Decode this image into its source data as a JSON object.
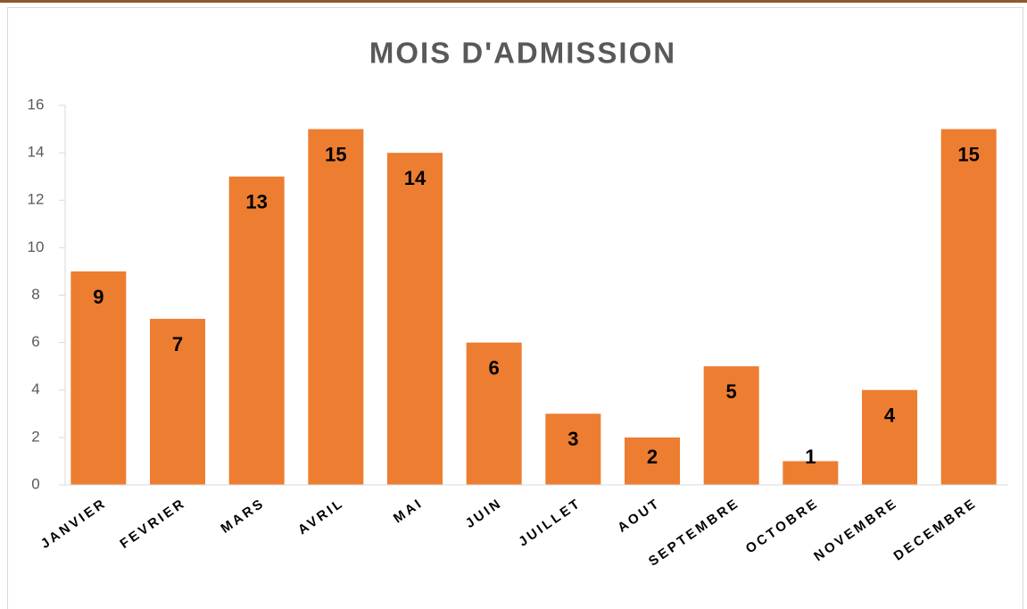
{
  "chart_data": {
    "type": "bar",
    "title": "MOIS D'ADMISSION",
    "categories": [
      "JANVIER",
      "FEVRIER",
      "MARS",
      "AVRIL",
      "MAI",
      "JUIN",
      "JUILLET",
      "AOUT",
      "SEPTEMBRE",
      "OCTOBRE",
      "NOVEMBRE",
      "DECEMBRE"
    ],
    "values": [
      9,
      7,
      13,
      15,
      14,
      6,
      3,
      2,
      5,
      1,
      4,
      15
    ],
    "color": "#ed7d31",
    "ylim": [
      0,
      16
    ],
    "yticks": [
      0,
      2,
      4,
      6,
      8,
      10,
      12,
      14,
      16
    ],
    "grid": false
  }
}
